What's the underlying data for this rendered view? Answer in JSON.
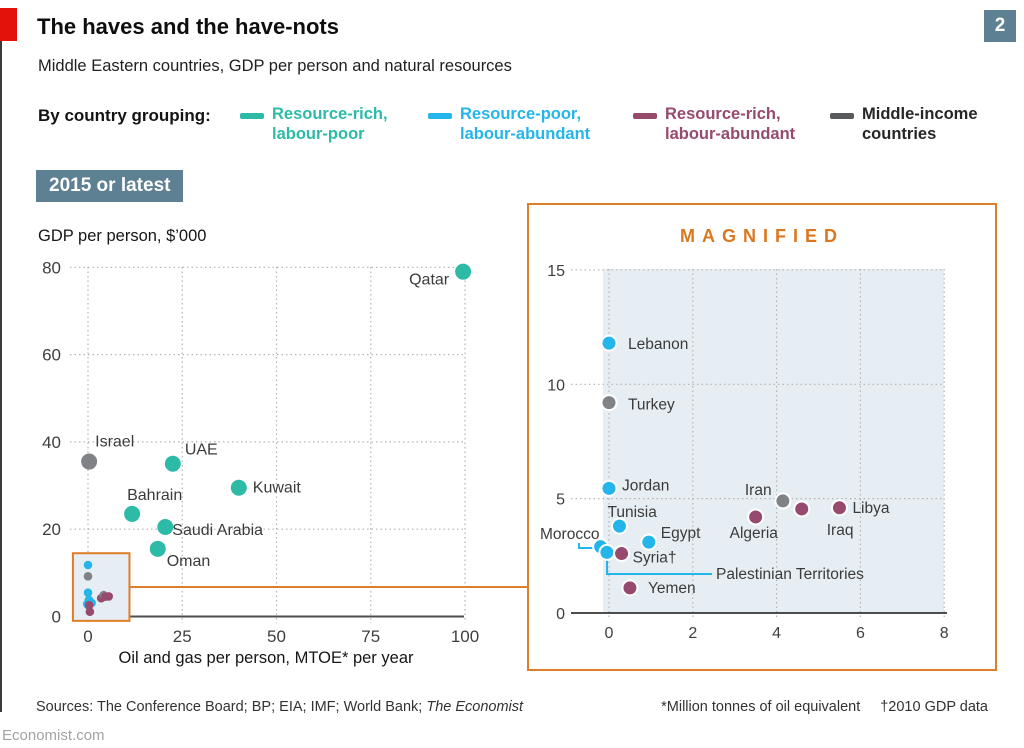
{
  "page": {
    "title": "The haves and the have-nots",
    "subtitle": "Middle Eastern countries, GDP per person and natural resources",
    "index_badge": "2",
    "time_badge": "2015 or latest",
    "economist_url": "Economist.com"
  },
  "legend": {
    "caption": "By country grouping:",
    "items": [
      {
        "label_line1": "Resource-rich,",
        "label_line2": "labour-poor",
        "color": "#2DBBA7",
        "text_color": "#2DBBA7",
        "group": "resource-rich-labour-poor"
      },
      {
        "label_line1": "Resource-poor,",
        "label_line2": "labour-abundant",
        "color": "#24B5EA",
        "text_color": "#24B5EA",
        "group": "resource-poor-labour-abundant"
      },
      {
        "label_line1": "Resource-rich,",
        "label_line2": "labour-abundant",
        "color": "#964A6E",
        "text_color": "#964A6E",
        "group": "resource-rich-labour-abundant"
      },
      {
        "label_line1": "Middle-income",
        "label_line2": "countries",
        "color": "#58595B",
        "text_color": "#262626",
        "group": "middle-income"
      }
    ]
  },
  "footer": {
    "sources_prefix": "Sources: The Conference Board; BP; EIA; IMF; World Bank; ",
    "sources_italic": "The Economist",
    "footnote_star": "*Million tonnes of oil equivalent",
    "footnote_dagger": "†2010 GDP data"
  },
  "chart_data": {
    "group_colors": {
      "resource-rich-labour-poor": "#2DBBA7",
      "resource-poor-labour-abundant": "#24B5EA",
      "resource-rich-labour-abundant": "#964A6E",
      "middle-income": "#808285"
    },
    "main": {
      "type": "scatter",
      "ylabel": "GDP per person, $’000",
      "xlabel": "Oil and gas per person, MTOE* per year",
      "xlim": [
        0,
        100
      ],
      "ylim": [
        0,
        80
      ],
      "xticks": [
        0,
        25,
        50,
        75,
        100
      ],
      "yticks": [
        0,
        20,
        40,
        60,
        80
      ],
      "grid": "dotted",
      "points": [
        {
          "name": "Qatar",
          "x": 99.5,
          "y": 79,
          "group": "resource-rich-labour-poor"
        },
        {
          "name": "Israel",
          "x": 0.3,
          "y": 35.5,
          "group": "middle-income"
        },
        {
          "name": "UAE",
          "x": 22.5,
          "y": 35,
          "group": "resource-rich-labour-poor"
        },
        {
          "name": "Bahrain",
          "x": 11.7,
          "y": 23.5,
          "group": "resource-rich-labour-poor"
        },
        {
          "name": "Kuwait",
          "x": 40,
          "y": 29.5,
          "group": "resource-rich-labour-poor"
        },
        {
          "name": "Saudi Arabia",
          "x": 20.5,
          "y": 20.5,
          "group": "resource-rich-labour-poor"
        },
        {
          "name": "Oman",
          "x": 18.5,
          "y": 15.5,
          "group": "resource-rich-labour-poor"
        }
      ],
      "inset_box": {
        "x0": -4,
        "x1": 11,
        "y0": -1,
        "y1": 14.5
      }
    },
    "magnified": {
      "type": "scatter",
      "title": "MAGNIFIED",
      "xlim": [
        0,
        8
      ],
      "ylim": [
        0,
        15
      ],
      "xticks": [
        0,
        2,
        4,
        6,
        8
      ],
      "yticks": [
        0,
        5,
        10,
        15
      ],
      "grid": "dotted",
      "points": [
        {
          "name": "Lebanon",
          "x": 0,
          "y": 11.8,
          "group": "resource-poor-labour-abundant"
        },
        {
          "name": "Turkey",
          "x": 0,
          "y": 9.2,
          "group": "middle-income"
        },
        {
          "name": "Jordan",
          "x": 0,
          "y": 5.45,
          "group": "resource-poor-labour-abundant"
        },
        {
          "name": "Tunisia",
          "x": 0.25,
          "y": 3.8,
          "group": "resource-poor-labour-abundant"
        },
        {
          "name": "Morocco",
          "x": -0.2,
          "y": 2.9,
          "group": "resource-poor-labour-abundant"
        },
        {
          "name": "Palestinian Territories",
          "x": -0.05,
          "y": 2.65,
          "group": "resource-poor-labour-abundant"
        },
        {
          "name": "Egypt",
          "x": 0.95,
          "y": 3.1,
          "group": "resource-poor-labour-abundant"
        },
        {
          "name": "Syria†",
          "x": 0.3,
          "y": 2.6,
          "group": "resource-rich-labour-abundant"
        },
        {
          "name": "Yemen",
          "x": 0.5,
          "y": 1.1,
          "group": "resource-rich-labour-abundant"
        },
        {
          "name": "Algeria",
          "x": 3.5,
          "y": 4.2,
          "group": "resource-rich-labour-abundant"
        },
        {
          "name": "Iran",
          "x": 4.15,
          "y": 4.9,
          "group": "middle-income"
        },
        {
          "name": "Iraq",
          "x": 4.6,
          "y": 4.55,
          "group": "resource-rich-labour-abundant"
        },
        {
          "name": "Libya",
          "x": 5.5,
          "y": 4.6,
          "group": "resource-rich-labour-abundant"
        }
      ]
    }
  }
}
